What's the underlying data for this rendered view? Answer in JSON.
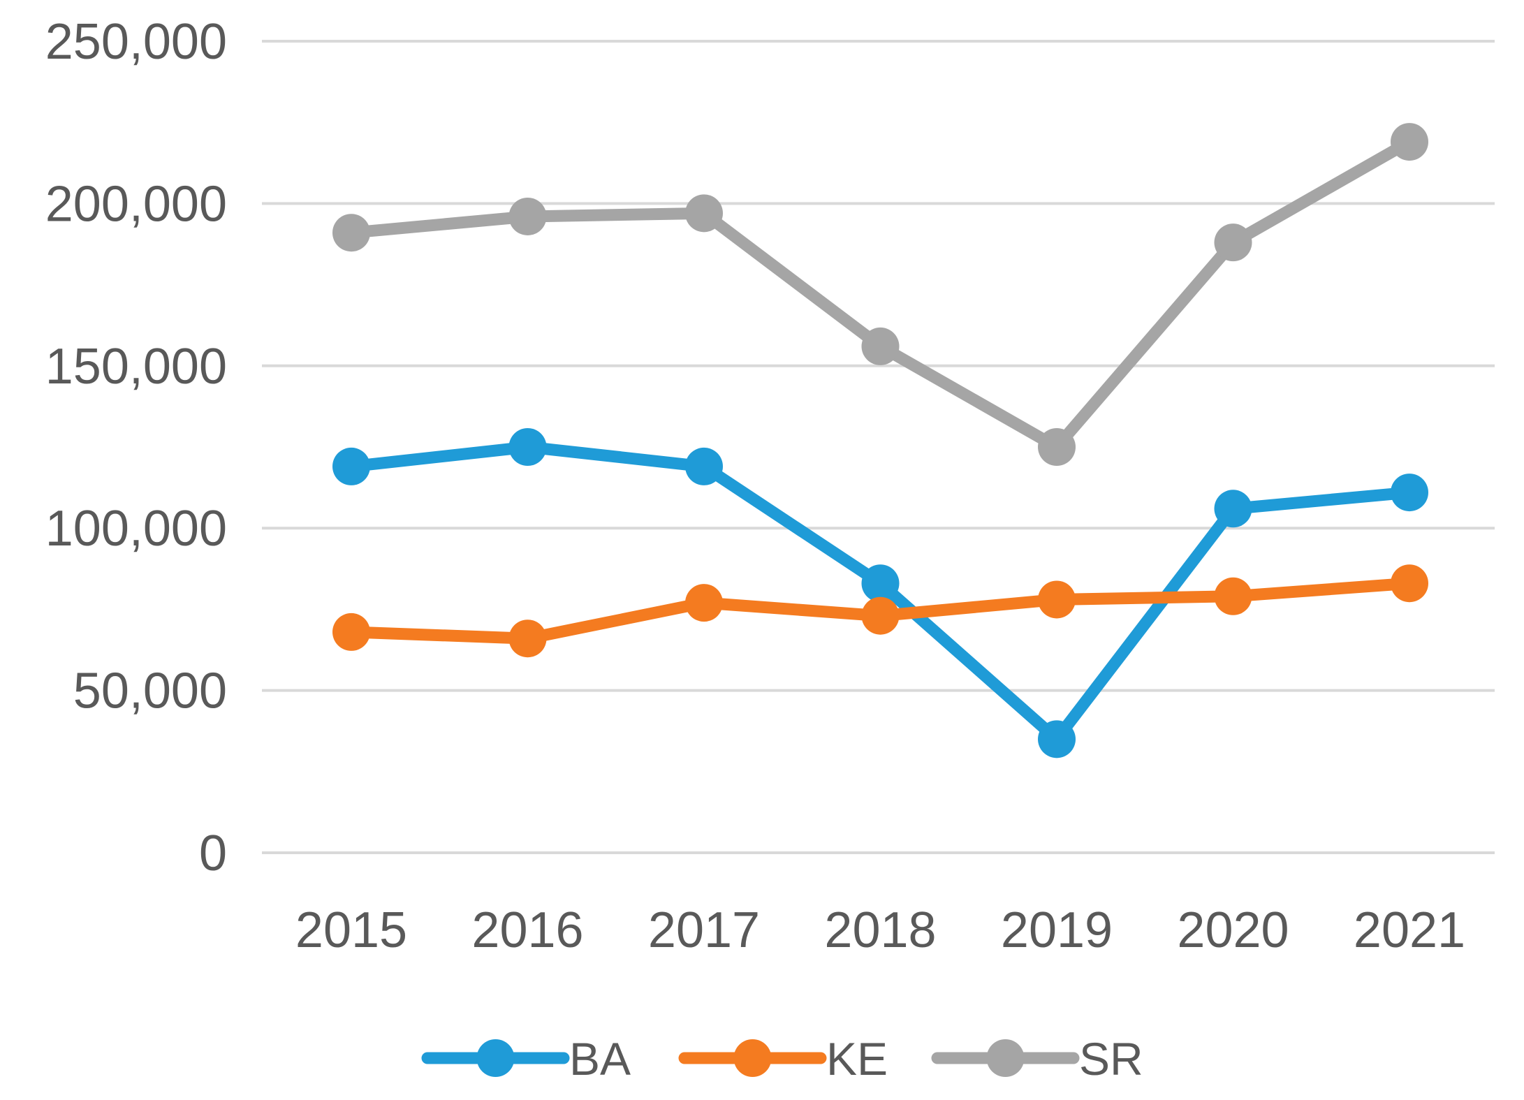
{
  "chart_data": {
    "type": "line",
    "title": "",
    "xlabel": "",
    "ylabel": "",
    "categories": [
      "2015",
      "2016",
      "2017",
      "2018",
      "2019",
      "2020",
      "2021"
    ],
    "ylim": [
      0,
      250000
    ],
    "yticks": [
      0,
      50000,
      100000,
      150000,
      200000,
      250000
    ],
    "ytick_labels": [
      "0",
      "50,000",
      "100,000",
      "150,000",
      "200,000",
      "250,000"
    ],
    "grid": true,
    "legend_position": "bottom",
    "series": [
      {
        "name": "BA",
        "color": "#1f9bd7",
        "values": [
          119000,
          125000,
          119000,
          83000,
          35000,
          106000,
          111000
        ]
      },
      {
        "name": "KE",
        "color": "#f47b20",
        "values": [
          68000,
          66000,
          77000,
          73000,
          78000,
          79000,
          83000
        ]
      },
      {
        "name": "SR",
        "color": "#a5a5a5",
        "values": [
          191000,
          196000,
          197000,
          156000,
          125000,
          188000,
          219000
        ]
      }
    ]
  }
}
